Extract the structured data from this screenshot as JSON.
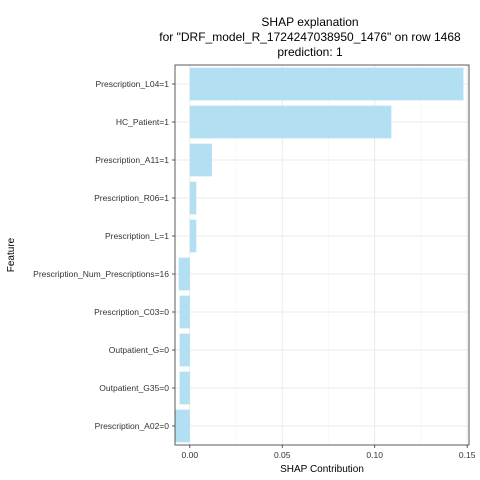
{
  "chart_data": {
    "type": "bar",
    "orientation": "horizontal",
    "title_lines": [
      "SHAP explanation",
      "for \"DRF_model_R_1724247038950_1476\" on row 1468",
      "prediction: 1"
    ],
    "xlabel": "SHAP Contribution",
    "ylabel": "Feature",
    "xlim": [
      -0.008,
      0.151
    ],
    "xticks": [
      0.0,
      0.05,
      0.1,
      0.15
    ],
    "xtick_labels": [
      "0.00",
      "0.05",
      "0.10",
      "0.15"
    ],
    "categories": [
      "Prescription_L04=1",
      "HC_Patient=1",
      "Prescription_A11=1",
      "Prescription_R06=1",
      "Prescription_L=1",
      "Prescription_Num_Prescriptions=16",
      "Prescription_C03=0",
      "Outpatient_G=0",
      "Outpatient_G35=0",
      "Prescription_A02=0"
    ],
    "values": [
      0.148,
      0.109,
      0.012,
      0.0035,
      0.0035,
      -0.006,
      -0.0055,
      -0.0055,
      -0.0055,
      -0.008
    ],
    "bar_color": "#b3dff3",
    "grid": true,
    "legend": "none"
  }
}
